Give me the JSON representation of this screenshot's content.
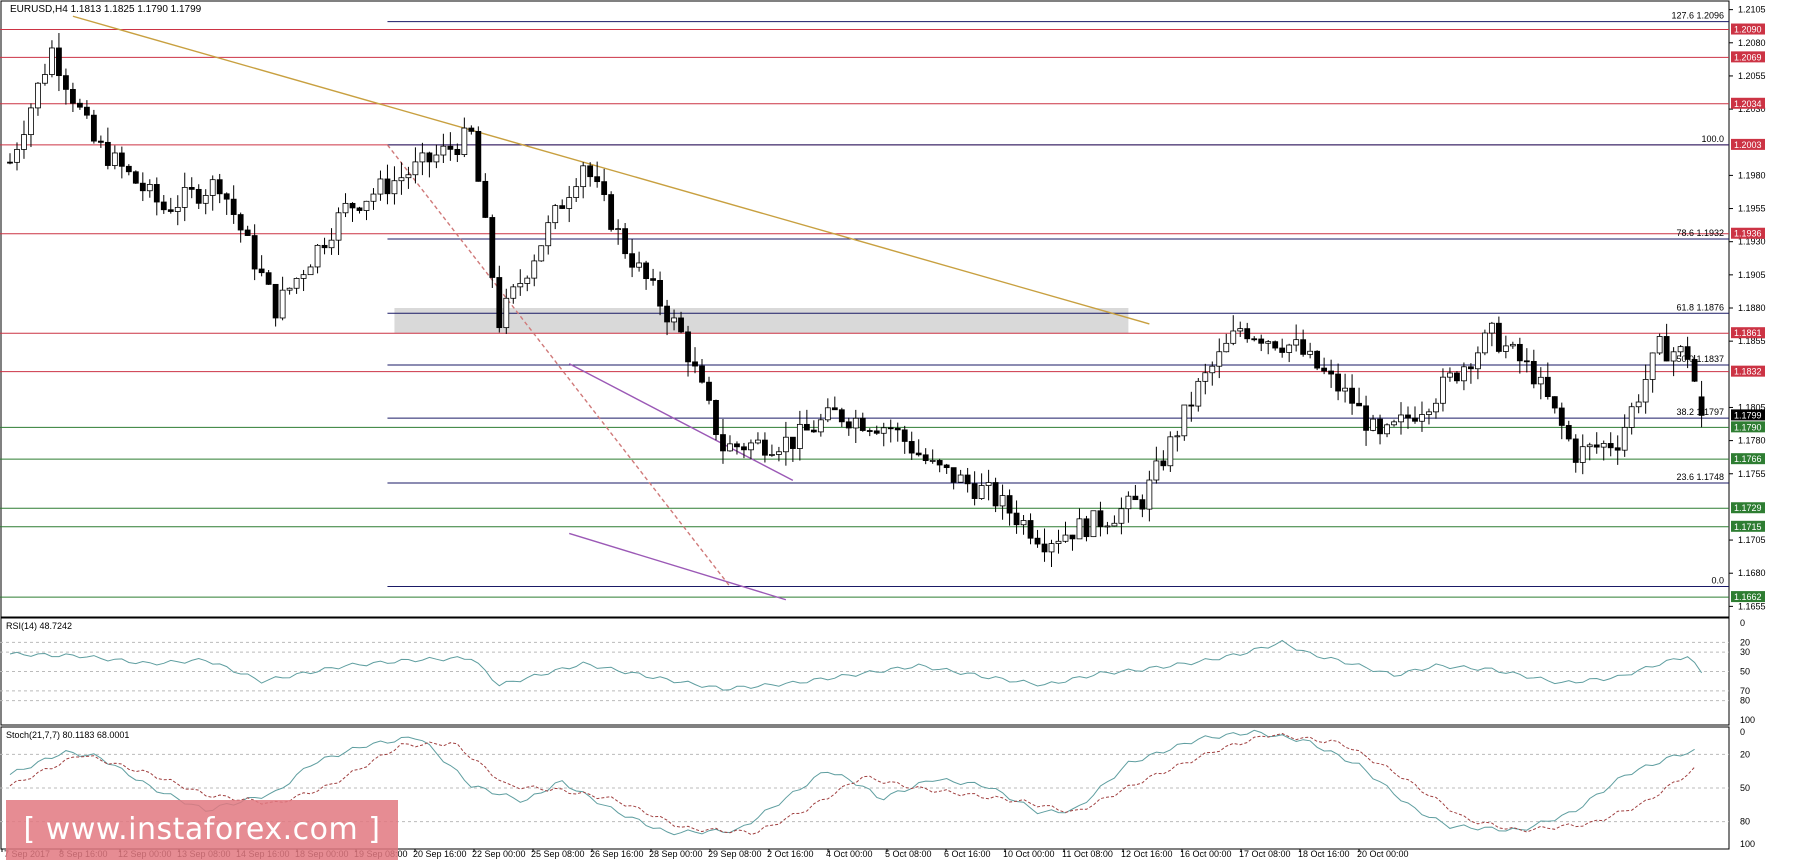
{
  "header": {
    "title": "EURUSD,H4  1.1813 1.1825 1.1790 1.1799"
  },
  "chart_data": {
    "type": "candlestick",
    "symbol": "EURUSD",
    "timeframe": "H4",
    "ohlc_current": {
      "open": 1.1813,
      "high": 1.1825,
      "low": 1.179,
      "close": 1.1799
    },
    "ylim": [
      1.165,
      1.211
    ],
    "price_ticks": [
      1.2105,
      1.208,
      1.2055,
      1.203,
      1.198,
      1.1955,
      1.193,
      1.1905,
      1.188,
      1.1855,
      1.1805,
      1.178,
      1.1755,
      1.1705,
      1.168,
      1.1655
    ],
    "x_labels": [
      "7 Sep 2017",
      "8 Sep 16:00",
      "12 Sep 00:00",
      "13 Sep 08:00",
      "14 Sep 16:00",
      "18 Sep 00:00",
      "19 Sep 08:00",
      "20 Sep 16:00",
      "22 Sep 00:00",
      "25 Sep 08:00",
      "26 Sep 16:00",
      "28 Sep 00:00",
      "29 Sep 08:00",
      "2 Oct 16:00",
      "4 Oct 00:00",
      "5 Oct 08:00",
      "6 Oct 16:00",
      "10 Oct 00:00",
      "11 Oct 08:00",
      "12 Oct 16:00",
      "16 Oct 00:00",
      "17 Oct 08:00",
      "18 Oct 16:00",
      "20 Oct 00:00"
    ],
    "candle_count": 193,
    "close_path": [
      [
        0,
        1.199
      ],
      [
        6,
        1.2075
      ],
      [
        12,
        1.2005
      ],
      [
        22,
        1.1955
      ],
      [
        30,
        1.1975
      ],
      [
        38,
        1.188
      ],
      [
        48,
        1.1955
      ],
      [
        58,
        1.1985
      ],
      [
        66,
        1.201
      ],
      [
        70,
        1.187
      ],
      [
        82,
        1.199
      ],
      [
        88,
        1.1925
      ],
      [
        96,
        1.186
      ],
      [
        102,
        1.1775
      ],
      [
        112,
        1.178
      ],
      [
        118,
        1.18
      ],
      [
        126,
        1.179
      ],
      [
        132,
        1.176
      ],
      [
        140,
        1.174
      ],
      [
        148,
        1.1705
      ],
      [
        156,
        1.172
      ],
      [
        162,
        1.1735
      ],
      [
        170,
        1.182
      ],
      [
        176,
        1.1865
      ],
      [
        184,
        1.185
      ],
      [
        192,
        1.181
      ],
      [
        196,
        1.178
      ],
      [
        204,
        1.1815
      ],
      [
        212,
        1.186
      ],
      [
        218,
        1.183
      ],
      [
        224,
        1.177
      ],
      [
        230,
        1.178
      ],
      [
        236,
        1.185
      ],
      [
        240,
        1.1845
      ],
      [
        241,
        1.1825
      ],
      [
        242,
        1.1799
      ]
    ],
    "resistance_levels": [
      1.209,
      1.2069,
      1.2034,
      1.2003,
      1.1936,
      1.1861,
      1.1832
    ],
    "support_levels": [
      1.179,
      1.1766,
      1.1729,
      1.1715,
      1.1662
    ],
    "current_price": 1.1799,
    "fibonacci": [
      {
        "label": "127.6 1.2096",
        "value": 1.2096
      },
      {
        "label": "100.0",
        "value": 1.2003
      },
      {
        "label": "78.6 1.1932",
        "value": 1.1932
      },
      {
        "label": "61.8 1.1876",
        "value": 1.1876
      },
      {
        "label": "50.0 1.1837",
        "value": 1.1837
      },
      {
        "label": "38.2 1.1797",
        "value": 1.1797
      },
      {
        "label": "23.6 1.1748",
        "value": 1.1748
      },
      {
        "label": "0.0",
        "value": 1.167
      }
    ],
    "resistance_badges": [
      "1.2090",
      "1.2069",
      "1.2034",
      "1.2003",
      "1.1936",
      "1.1861",
      "1.1832"
    ],
    "support_badges": [
      "1.1790",
      "1.1766",
      "1.1729",
      "1.1715",
      "1.1662"
    ],
    "current_badge": "1.1799",
    "zone": {
      "from": 1.1861,
      "to": 1.188,
      "color": "#d9d9d9"
    },
    "trendline": {
      "start": [
        9,
        1.21
      ],
      "end": [
        163,
        1.1868
      ],
      "color": "#c8a040"
    },
    "channel_upper": {
      "start": [
        80,
        1.1838
      ],
      "end": [
        112,
        1.175
      ],
      "color": "#9b59b6"
    },
    "channel_lower": {
      "start": [
        80,
        1.171
      ],
      "end": [
        111,
        1.166
      ],
      "color": "#9b59b6"
    },
    "fib_diagonal": {
      "start": [
        54,
        1.2003
      ],
      "end": [
        103,
        1.167
      ],
      "color": "#d07a7a"
    },
    "colors": {
      "resistance": "#cc3344",
      "support": "#2e7d32",
      "fib_line": "#1a1a66",
      "candle": "#000000"
    }
  },
  "rsi": {
    "label": "RSI(14) 48.7242",
    "ticks": [
      "100",
      "80",
      "70",
      "50",
      "30",
      "20",
      "0"
    ],
    "levels": [
      0,
      20,
      30,
      50,
      70,
      80,
      100
    ],
    "path": [
      [
        0,
        68
      ],
      [
        10,
        66
      ],
      [
        20,
        58
      ],
      [
        28,
        62
      ],
      [
        36,
        40
      ],
      [
        48,
        56
      ],
      [
        58,
        62
      ],
      [
        66,
        64
      ],
      [
        70,
        36
      ],
      [
        82,
        58
      ],
      [
        92,
        44
      ],
      [
        102,
        32
      ],
      [
        112,
        38
      ],
      [
        120,
        46
      ],
      [
        130,
        56
      ],
      [
        140,
        44
      ],
      [
        148,
        36
      ],
      [
        156,
        48
      ],
      [
        162,
        52
      ],
      [
        170,
        60
      ],
      [
        176,
        68
      ],
      [
        182,
        80
      ],
      [
        186,
        68
      ],
      [
        192,
        58
      ],
      [
        198,
        46
      ],
      [
        204,
        56
      ],
      [
        212,
        52
      ],
      [
        222,
        38
      ],
      [
        230,
        44
      ],
      [
        236,
        58
      ],
      [
        240,
        66
      ],
      [
        242,
        48.7
      ]
    ]
  },
  "stoch": {
    "label": "Stoch(21,7,7) 80.1183 68.0001",
    "ticks": [
      "100",
      "80",
      "50",
      "20",
      "0"
    ],
    "levels": [
      0,
      20,
      50,
      80,
      100
    ],
    "main_path": [
      [
        0,
        62
      ],
      [
        6,
        82
      ],
      [
        10,
        78
      ],
      [
        16,
        50
      ],
      [
        22,
        30
      ],
      [
        30,
        46
      ],
      [
        34,
        72
      ],
      [
        40,
        88
      ],
      [
        46,
        96
      ],
      [
        52,
        52
      ],
      [
        58,
        38
      ],
      [
        62,
        56
      ],
      [
        68,
        30
      ],
      [
        74,
        10
      ],
      [
        82,
        12
      ],
      [
        88,
        44
      ],
      [
        92,
        66
      ],
      [
        96,
        52
      ],
      [
        98,
        40
      ],
      [
        104,
        58
      ],
      [
        110,
        52
      ],
      [
        116,
        28
      ],
      [
        120,
        30
      ],
      [
        126,
        72
      ],
      [
        134,
        94
      ],
      [
        140,
        100
      ],
      [
        146,
        92
      ],
      [
        152,
        70
      ],
      [
        158,
        32
      ],
      [
        162,
        16
      ],
      [
        170,
        12
      ],
      [
        176,
        28
      ],
      [
        182,
        62
      ],
      [
        188,
        80
      ],
      [
        190,
        83
      ]
    ],
    "signal_path": [
      [
        0,
        52
      ],
      [
        8,
        80
      ],
      [
        16,
        62
      ],
      [
        22,
        44
      ],
      [
        30,
        36
      ],
      [
        36,
        52
      ],
      [
        44,
        88
      ],
      [
        50,
        90
      ],
      [
        56,
        52
      ],
      [
        62,
        48
      ],
      [
        68,
        40
      ],
      [
        76,
        14
      ],
      [
        84,
        10
      ],
      [
        90,
        32
      ],
      [
        96,
        60
      ],
      [
        102,
        50
      ],
      [
        108,
        44
      ],
      [
        114,
        38
      ],
      [
        120,
        28
      ],
      [
        128,
        58
      ],
      [
        136,
        84
      ],
      [
        142,
        98
      ],
      [
        150,
        90
      ],
      [
        156,
        64
      ],
      [
        164,
        22
      ],
      [
        170,
        12
      ],
      [
        178,
        18
      ],
      [
        184,
        36
      ],
      [
        190,
        68
      ]
    ],
    "main_color": "#5f9ea0",
    "signal_color": "#a04040"
  },
  "watermark": "[ www.instaforex.com ]"
}
